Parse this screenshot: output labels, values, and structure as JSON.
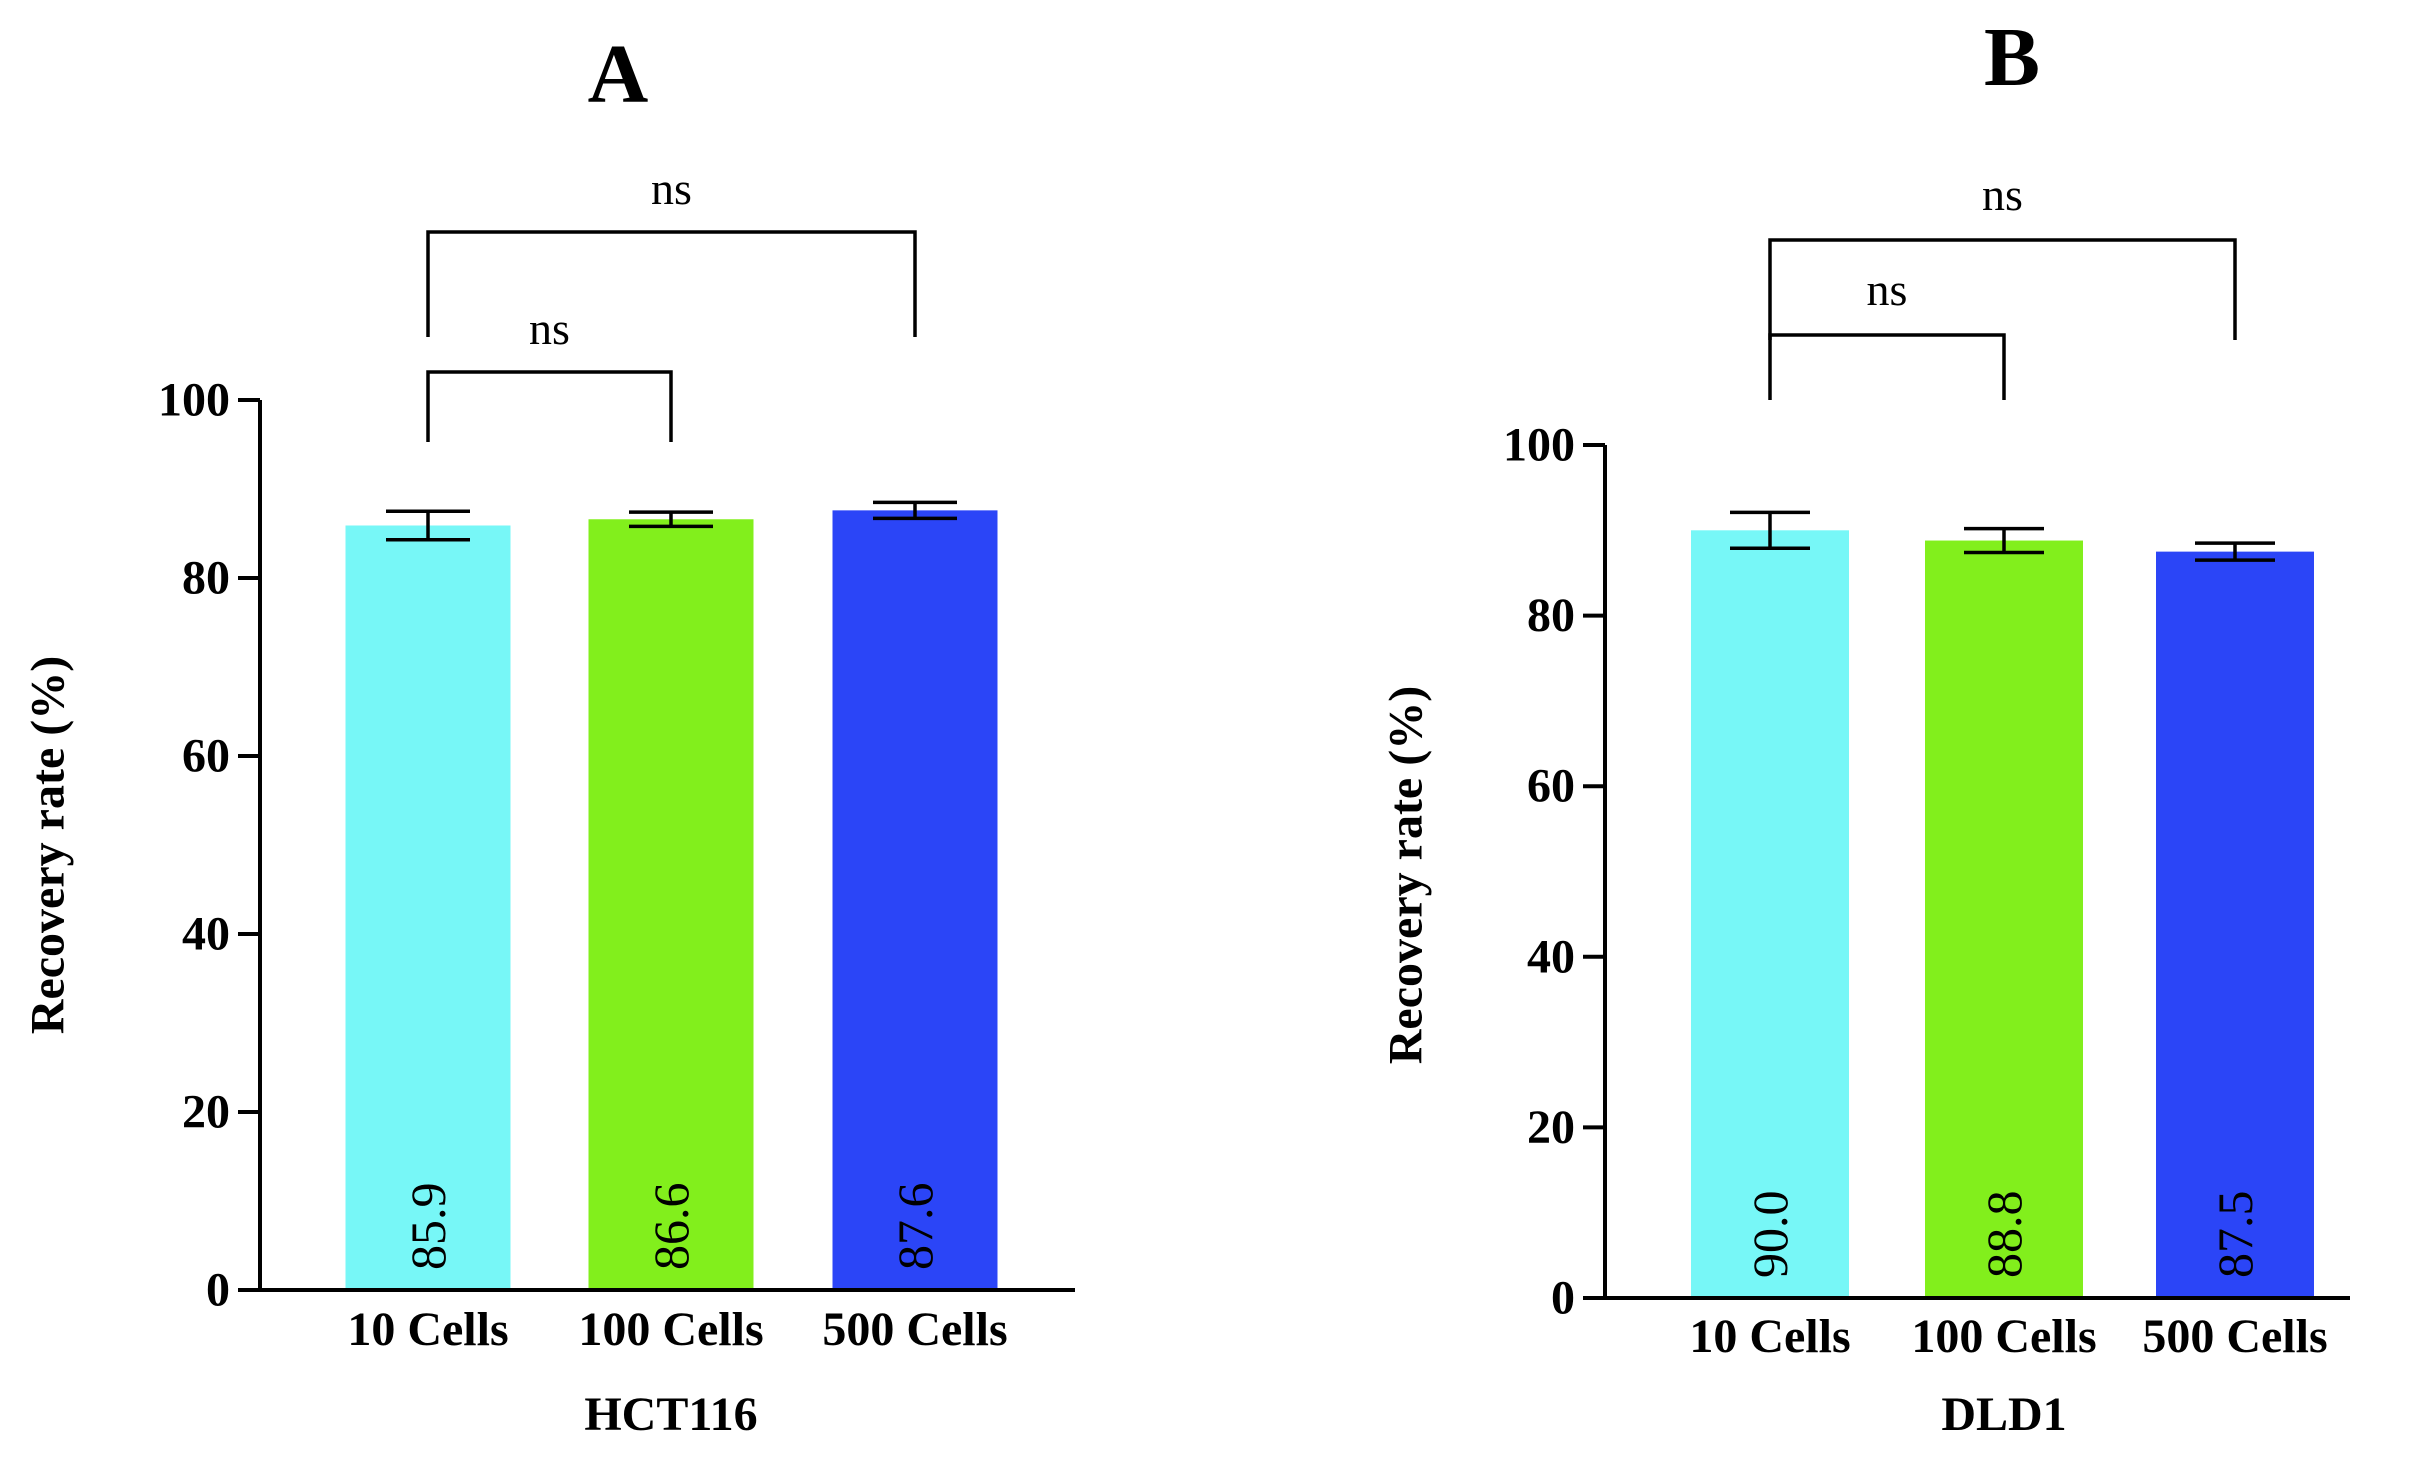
{
  "chart_data": [
    {
      "type": "bar",
      "panel": "A",
      "categories": [
        "10 Cells",
        "100 Cells",
        "500 Cells"
      ],
      "values": [
        85.9,
        86.6,
        87.6
      ],
      "value_labels": [
        "85.9",
        "86.6",
        "87.6"
      ],
      "errors": [
        1.6,
        0.8,
        0.9
      ],
      "colors": [
        "#77F7F7",
        "#82EF1C",
        "#2B45F7"
      ],
      "xlabel": "HCT116",
      "ylabel": "Recovery rate (%)",
      "ylim": [
        0,
        100
      ],
      "yticks": [
        0,
        20,
        40,
        60,
        80,
        100
      ],
      "grid": false,
      "significance": [
        {
          "from": 0,
          "to": 1,
          "label": "ns",
          "level": 1
        },
        {
          "from": 0,
          "to": 2,
          "label": "ns",
          "level": 2
        }
      ]
    },
    {
      "type": "bar",
      "panel": "B",
      "categories": [
        "10 Cells",
        "100 Cells",
        "500 Cells"
      ],
      "values": [
        90.0,
        88.8,
        87.5
      ],
      "value_labels": [
        "90.0",
        "88.8",
        "87.5"
      ],
      "errors": [
        2.1,
        1.4,
        1.0
      ],
      "colors": [
        "#77F7F7",
        "#82EF1C",
        "#2B45F7"
      ],
      "xlabel": "DLD1",
      "ylabel": "Recovery rate (%)",
      "ylim": [
        0,
        100
      ],
      "yticks": [
        0,
        20,
        40,
        60,
        80,
        100
      ],
      "grid": false,
      "significance": [
        {
          "from": 0,
          "to": 1,
          "label": "ns",
          "level": 1
        },
        {
          "from": 0,
          "to": 2,
          "label": "ns",
          "level": 2
        }
      ]
    }
  ]
}
